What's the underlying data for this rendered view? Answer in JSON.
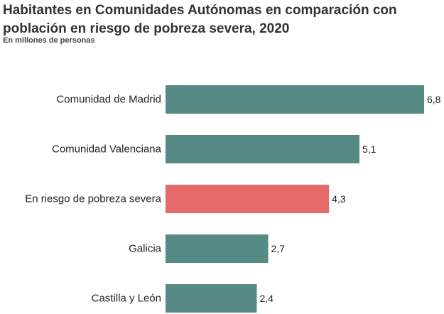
{
  "title": "Habitantes en Comunidades Autónomas en comparación con población en riesgo de pobreza severa, 2020",
  "subtitle": "En millones de personas",
  "colors": {
    "default": "#558b84",
    "highlight": "#e66a6a"
  },
  "chart_data": {
    "type": "bar",
    "orientation": "horizontal",
    "title": "Habitantes en Comunidades Autónomas en comparación con población en riesgo de pobreza severa, 2020",
    "subtitle": "En millones de personas",
    "categories": [
      "Comunidad de Madrid",
      "Comunidad Valenciana",
      "En riesgo de pobreza severa",
      "Galicia",
      "Castilla y León"
    ],
    "values": [
      6.8,
      5.1,
      4.3,
      2.7,
      2.4
    ],
    "value_labels": [
      "6,8",
      "5,1",
      "4,3",
      "2,7",
      "2,4"
    ],
    "highlight_category": "En riesgo de pobreza severa",
    "xlim": [
      0,
      6.8
    ],
    "grid": false,
    "legend": "none",
    "xlabel": "",
    "ylabel": ""
  }
}
